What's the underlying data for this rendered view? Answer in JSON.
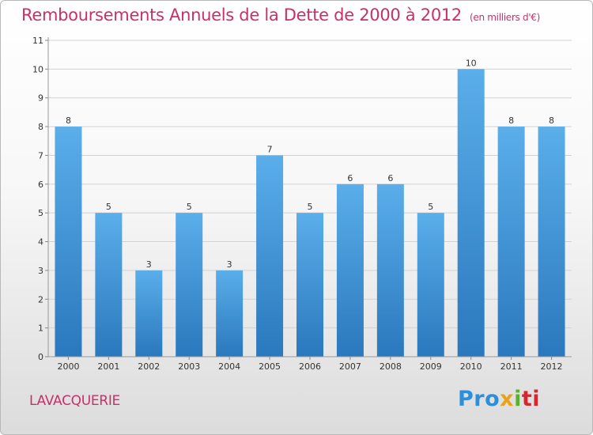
{
  "title": "Remboursements Annuels de la Dette de 2000 à 2012",
  "subtitle": "(en milliers d'€)",
  "town": "LAVACQUERIE",
  "logo": {
    "p1": "Pro",
    "p2": "x",
    "p3": "i",
    "p4": "ti"
  },
  "colors": {
    "title": "#c8306a",
    "bar_top": "#5aaeea",
    "bar_bottom": "#2a78bd",
    "grid": "#d2d2d2"
  },
  "chart_data": {
    "type": "bar",
    "categories": [
      "2000",
      "2001",
      "2002",
      "2003",
      "2004",
      "2005",
      "2006",
      "2007",
      "2008",
      "2009",
      "2010",
      "2011",
      "2012"
    ],
    "values": [
      8,
      5,
      3,
      5,
      3,
      7,
      5,
      6,
      6,
      5,
      10,
      8,
      8
    ],
    "ylim": [
      0,
      11
    ],
    "yticks": [
      0,
      1,
      2,
      3,
      4,
      5,
      6,
      7,
      8,
      9,
      10,
      11
    ],
    "grid": true,
    "title": "Remboursements Annuels de la Dette de 2000 à 2012",
    "xlabel": "",
    "ylabel": ""
  }
}
